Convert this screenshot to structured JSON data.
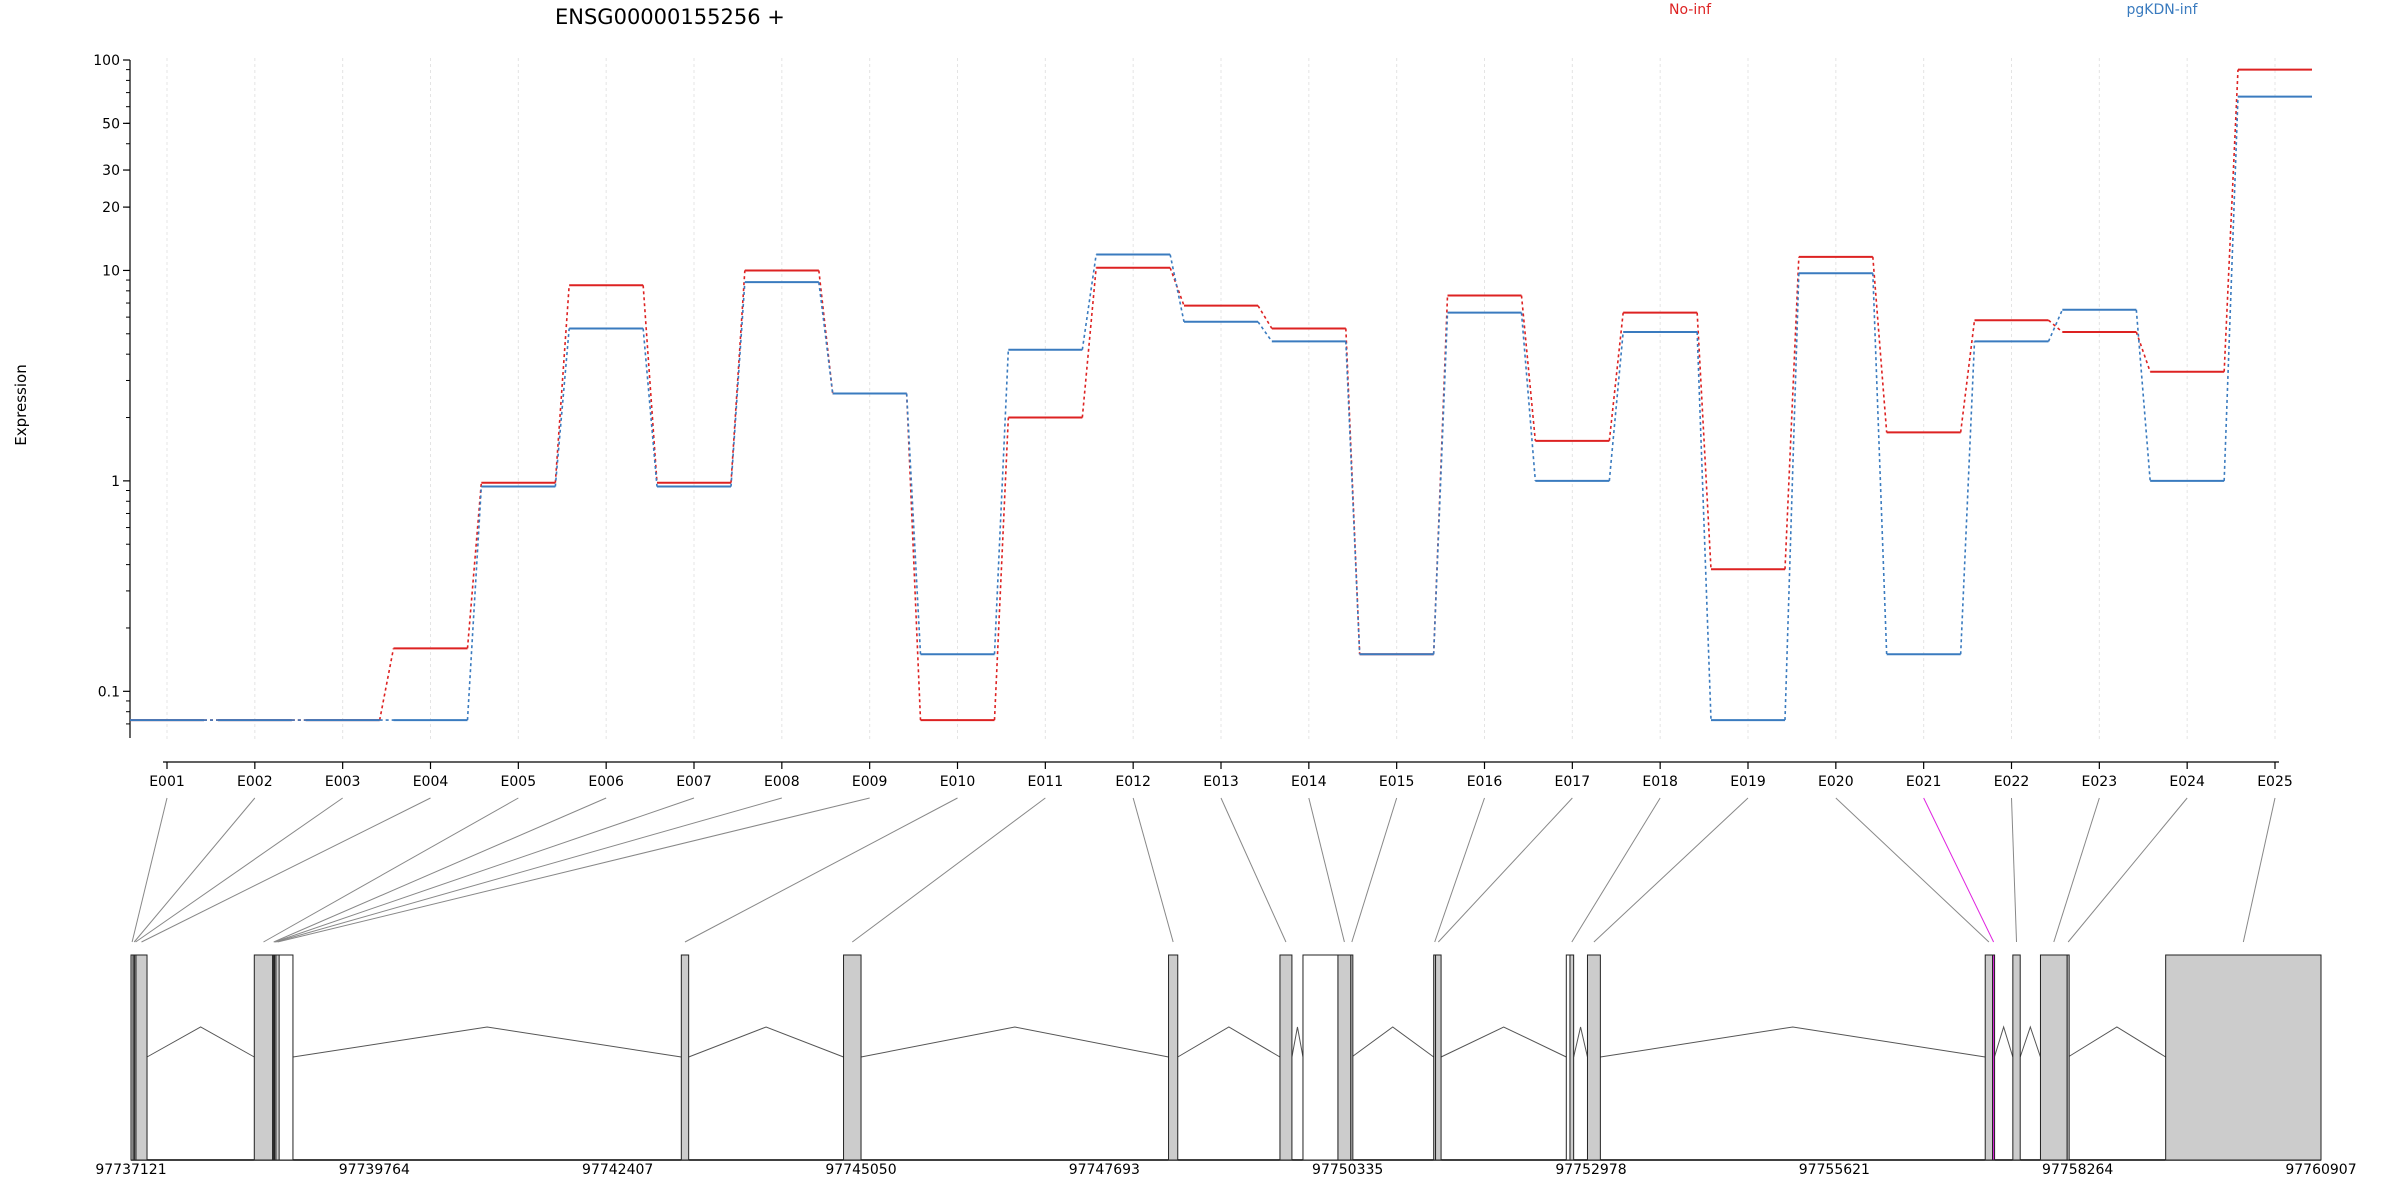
{
  "chart_data": {
    "type": "line",
    "title": "ENSG00000155256 +",
    "ylabel": "Expression",
    "y_scale": "log",
    "ylim": [
      0.06,
      100
    ],
    "y_ticks": [
      {
        "value": 0.1,
        "label": "0.1"
      },
      {
        "value": 1,
        "label": "1"
      },
      {
        "value": 10,
        "label": "10"
      },
      {
        "value": 20,
        "label": "20"
      },
      {
        "value": 30,
        "label": "30"
      },
      {
        "value": 50,
        "label": "50"
      },
      {
        "value": 100,
        "label": "100"
      }
    ],
    "categories": [
      "E001",
      "E002",
      "E003",
      "E004",
      "E005",
      "E006",
      "E007",
      "E008",
      "E009",
      "E010",
      "E011",
      "E012",
      "E013",
      "E014",
      "E015",
      "E016",
      "E017",
      "E018",
      "E019",
      "E020",
      "E021",
      "E022",
      "E023",
      "E024",
      "E025"
    ],
    "series": [
      {
        "name": "No-inf",
        "color": "#dd2222",
        "values": [
          0.073,
          0.073,
          0.073,
          0.16,
          0.98,
          8.5,
          0.98,
          10.0,
          2.6,
          0.073,
          2.0,
          10.3,
          6.8,
          5.3,
          0.15,
          7.6,
          1.55,
          6.3,
          0.38,
          11.6,
          1.7,
          5.8,
          5.1,
          3.3,
          90
        ]
      },
      {
        "name": "pgKDN-inf",
        "color": "#3a7bbf",
        "values": [
          0.073,
          0.073,
          0.073,
          0.073,
          0.94,
          5.3,
          0.94,
          8.8,
          2.6,
          0.15,
          4.2,
          11.9,
          5.7,
          4.6,
          0.15,
          6.3,
          1.0,
          5.1,
          0.073,
          9.7,
          0.15,
          4.6,
          6.5,
          1.0,
          67
        ]
      }
    ],
    "gene_model": {
      "coordinate_ticks": [
        "97737121",
        "97739764",
        "97742407",
        "97745050",
        "97747693",
        "97750335",
        "97752978",
        "97755621",
        "97758264",
        "97760907"
      ],
      "coord_range": [
        97737121,
        97760907
      ],
      "highlight_exon": "E021",
      "highlight_color": "#e024e0",
      "exon_fill": "#cccccc",
      "exons": [
        {
          "id": "E001",
          "start": 97737121,
          "end": 97737145
        },
        {
          "id": "E002",
          "start": 97737145,
          "end": 97737160
        },
        {
          "id": "E003",
          "start": 97737160,
          "end": 97737175
        },
        {
          "id": "E004",
          "start": 97737175,
          "end": 97737295
        },
        {
          "id": "E005",
          "start": 97738460,
          "end": 97738660
        },
        {
          "id": "E006",
          "start": 97738660,
          "end": 97738670
        },
        {
          "id": "E007",
          "start": 97738670,
          "end": 97738680
        },
        {
          "id": "E008",
          "start": 97738680,
          "end": 97738695
        },
        {
          "id": "E009",
          "start": 97738695,
          "end": 97738730
        },
        {
          "id": "E010",
          "start": 97743098,
          "end": 97743178
        },
        {
          "id": "E011",
          "start": 97744860,
          "end": 97745050
        },
        {
          "id": "E012",
          "start": 97748390,
          "end": 97748490
        },
        {
          "id": "E013",
          "start": 97749600,
          "end": 97749730
        },
        {
          "id": "E014",
          "start": 97750230,
          "end": 97750370
        },
        {
          "id": "E015",
          "start": 97750370,
          "end": 97750380
        },
        {
          "id": "E016",
          "start": 97751270,
          "end": 97751290
        },
        {
          "id": "E017",
          "start": 97751290,
          "end": 97751350
        },
        {
          "id": "E018",
          "start": 97752750,
          "end": 97752790
        },
        {
          "id": "E019",
          "start": 97752940,
          "end": 97753080
        },
        {
          "id": "E020",
          "start": 97757260,
          "end": 97757340
        },
        {
          "id": "E021",
          "start": 97757340,
          "end": 97757360
        },
        {
          "id": "E022",
          "start": 97757560,
          "end": 97757640
        },
        {
          "id": "E023",
          "start": 97757860,
          "end": 97758150
        },
        {
          "id": "E024",
          "start": 97758150,
          "end": 97758160
        },
        {
          "id": "E025",
          "start": 97759220,
          "end": 97760907
        }
      ],
      "white_boxes": [
        {
          "start": 97738660,
          "end": 97738880
        },
        {
          "start": 97749850,
          "end": 97750230
        },
        {
          "start": 97752710,
          "end": 97752750
        },
        {
          "start": 97757880,
          "end": 97757900
        }
      ],
      "introns": [
        [
          97737295,
          97738460
        ],
        [
          97738880,
          97743098
        ],
        [
          97743178,
          97744860
        ],
        [
          97745050,
          97748390
        ],
        [
          97748490,
          97749600
        ],
        [
          97749730,
          97749850
        ],
        [
          97750380,
          97751270
        ],
        [
          97751350,
          97752710
        ],
        [
          97752790,
          97752940
        ],
        [
          97753080,
          97757260
        ],
        [
          97757360,
          97757560
        ],
        [
          97757640,
          97757860
        ],
        [
          97758160,
          97759220
        ]
      ]
    }
  }
}
